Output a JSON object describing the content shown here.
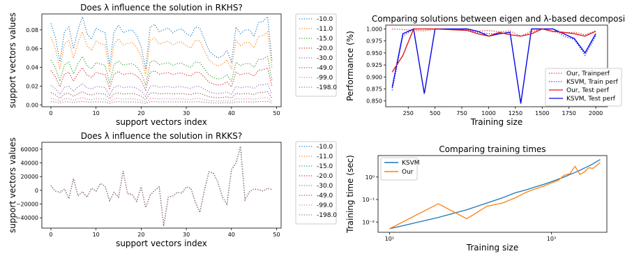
{
  "chart_data": [
    {
      "type": "line",
      "title": "Does λ influence the solution in RKHS?",
      "xlabel": "support vectors index",
      "ylabel": "support vectors values",
      "xlim": [
        -2,
        51
      ],
      "ylim": [
        -0.002,
        0.097
      ],
      "xticks": [
        0,
        10,
        20,
        30,
        40,
        50
      ],
      "yticks": [
        0.0,
        0.02,
        0.04,
        0.06,
        0.08
      ],
      "ytick_labels": [
        "0.00",
        "0.02",
        "0.04",
        "0.06",
        "0.08"
      ],
      "legend": "right, outside",
      "base": [
        0.087,
        0.072,
        0.046,
        0.078,
        0.083,
        0.06,
        0.08,
        0.094,
        0.076,
        0.07,
        0.082,
        0.079,
        0.077,
        0.042,
        0.078,
        0.085,
        0.077,
        0.079,
        0.08,
        0.074,
        0.062,
        0.038,
        0.083,
        0.086,
        0.078,
        0.08,
        0.082,
        0.077,
        0.08,
        0.081,
        0.076,
        0.073,
        0.083,
        0.082,
        0.07,
        0.058,
        0.053,
        0.05,
        0.052,
        0.058,
        0.046,
        0.083,
        0.076,
        0.08,
        0.08,
        0.073,
        0.088,
        0.089,
        0.094,
        0.046
      ],
      "series": [
        {
          "name": "-10.0",
          "scale": 1.0,
          "color": "#1f77b4"
        },
        {
          "name": "-11.0",
          "scale": 0.83,
          "color": "#ff7f0e"
        },
        {
          "name": "-15.0",
          "scale": 0.55,
          "color": "#2ca02c"
        },
        {
          "name": "-20.0",
          "scale": 0.42,
          "color": "#d62728"
        },
        {
          "name": "-30.0",
          "scale": 0.24,
          "color": "#9467bd"
        },
        {
          "name": "-49.0",
          "scale": 0.15,
          "color": "#8c564b"
        },
        {
          "name": "-99.0",
          "scale": 0.08,
          "color": "#e377c2"
        },
        {
          "name": "-198.0",
          "scale": 0.04,
          "color": "#7f7f7f"
        }
      ]
    },
    {
      "type": "line",
      "title": "Does λ influence the solution in RKKS?",
      "xlabel": "support vectors index",
      "ylabel": "support vectors values",
      "xlim": [
        -2,
        51
      ],
      "ylim": [
        -55000,
        70000
      ],
      "xticks": [
        0,
        10,
        20,
        30,
        40,
        50
      ],
      "yticks": [
        -40000,
        -20000,
        0,
        20000,
        40000,
        60000
      ],
      "ytick_labels": [
        "−40000",
        "−20000",
        "0",
        "20000",
        "40000",
        "60000"
      ],
      "legend": "right, outside",
      "values": [
        7000,
        -1000,
        -3000,
        2000,
        -12000,
        17000,
        -8000,
        -2000,
        -10000,
        3000,
        -1000,
        10000,
        6000,
        -15000,
        -3000,
        -10000,
        28000,
        -5000,
        -6000,
        -16000,
        5000,
        -25000,
        -7000,
        0,
        5000,
        -52000,
        -10000,
        -8000,
        -3000,
        -4000,
        5000,
        3000,
        -17000,
        -32000,
        0,
        27000,
        25000,
        12000,
        -10000,
        -20000,
        30000,
        40000,
        64000,
        -14000,
        -2000,
        2000,
        1000,
        -1000,
        3000,
        1000
      ],
      "series": [
        {
          "name": "-10.0",
          "color": "#1f77b4"
        },
        {
          "name": "-11.0",
          "color": "#ff7f0e"
        },
        {
          "name": "-15.0",
          "color": "#2ca02c"
        },
        {
          "name": "-20.0",
          "color": "#d62728"
        },
        {
          "name": "-30.0",
          "color": "#9467bd"
        },
        {
          "name": "-49.0",
          "color": "#8c564b"
        },
        {
          "name": "-99.0",
          "color": "#e377c2"
        },
        {
          "name": "-198.0",
          "color": "#7f7f7f"
        }
      ]
    },
    {
      "type": "line",
      "title": "Comparing solutions between eigen and λ-based decomposition",
      "xlabel": "Training size",
      "ylabel": "Performance (%)",
      "xlim": [
        40,
        2110
      ],
      "ylim": [
        0.838,
        1.008
      ],
      "xticks": [
        250,
        500,
        750,
        1000,
        1250,
        1500,
        1750,
        2000
      ],
      "yticks": [
        0.85,
        0.875,
        0.9,
        0.925,
        0.95,
        0.975,
        1.0
      ],
      "ytick_labels": [
        "0.850",
        "0.875",
        "0.900",
        "0.925",
        "0.950",
        "0.975",
        "1.000"
      ],
      "legend": "lower right",
      "x": [
        100,
        200,
        300,
        400,
        500,
        600,
        700,
        800,
        900,
        1000,
        1100,
        1200,
        1300,
        1400,
        1500,
        1600,
        1700,
        1800,
        1900,
        2000
      ],
      "series": [
        {
          "name": "Our, Trainperf",
          "style": "dotted",
          "color": "#e41a1c",
          "values": [
            1.0,
            0.999,
            0.997,
            0.996,
            1.0,
            0.999,
            0.998,
            0.997,
            0.995,
            0.997,
            0.994,
            0.996,
            0.985,
            0.995,
            1.0,
            0.994,
            0.992,
            0.993,
            0.988,
            0.996
          ]
        },
        {
          "name": "KSVM, Train perf",
          "style": "dotted",
          "color": "#2222dd",
          "values": [
            0.872,
            0.985,
            1.0,
            0.865,
            1.0,
            1.0,
            1.0,
            0.998,
            0.993,
            0.99,
            0.99,
            0.993,
            0.843,
            1.0,
            1.0,
            1.0,
            0.985,
            0.978,
            0.945,
            0.985
          ]
        },
        {
          "name": "Our, Test perf",
          "style": "solid",
          "color": "#e41a1c",
          "values": [
            0.91,
            0.945,
            1.0,
            1.0,
            1.0,
            0.999,
            0.998,
            0.997,
            0.99,
            0.985,
            0.993,
            0.988,
            0.985,
            0.99,
            1.0,
            0.995,
            0.993,
            0.99,
            0.985,
            0.995
          ]
        },
        {
          "name": "KSVM, Test perf",
          "style": "solid",
          "color": "#0000ee",
          "values": [
            0.878,
            0.99,
            1.0,
            0.865,
            1.0,
            1.0,
            1.0,
            1.0,
            0.995,
            0.985,
            0.99,
            0.993,
            0.845,
            1.0,
            1.0,
            1.0,
            0.99,
            0.98,
            0.95,
            0.99
          ]
        }
      ]
    },
    {
      "type": "line",
      "title": "Comparing training times",
      "xlabel": "Training size",
      "ylabel": "Training time (sec)",
      "xscale": "log",
      "yscale": "log",
      "xlim": [
        85,
        2200
      ],
      "ylim": [
        0.0035,
        9
      ],
      "xticks": [
        100,
        1000
      ],
      "xtick_labels": [
        "10²",
        "10³"
      ],
      "yticks": [
        0.01,
        0.1,
        1
      ],
      "ytick_labels": [
        "10⁻²",
        "10⁻¹",
        "10⁰"
      ],
      "legend": "upper left",
      "x": [
        100,
        200,
        300,
        400,
        500,
        600,
        700,
        800,
        900,
        1000,
        1100,
        1200,
        1300,
        1400,
        1500,
        1600,
        1700,
        1800,
        1900,
        2000
      ],
      "series": [
        {
          "name": "KSVM",
          "color": "#1f77b4",
          "values": [
            0.005,
            0.016,
            0.035,
            0.07,
            0.12,
            0.2,
            0.27,
            0.37,
            0.48,
            0.62,
            0.8,
            1.0,
            1.3,
            1.6,
            2.0,
            2.5,
            3.1,
            3.8,
            4.8,
            6.0
          ]
        },
        {
          "name": "Our",
          "color": "#ff7f0e",
          "values": [
            0.005,
            0.065,
            0.014,
            0.05,
            0.07,
            0.12,
            0.21,
            0.3,
            0.4,
            0.55,
            0.7,
            1.2,
            1.4,
            3.0,
            1.3,
            1.7,
            2.6,
            2.4,
            3.2,
            4.5
          ]
        }
      ]
    }
  ]
}
